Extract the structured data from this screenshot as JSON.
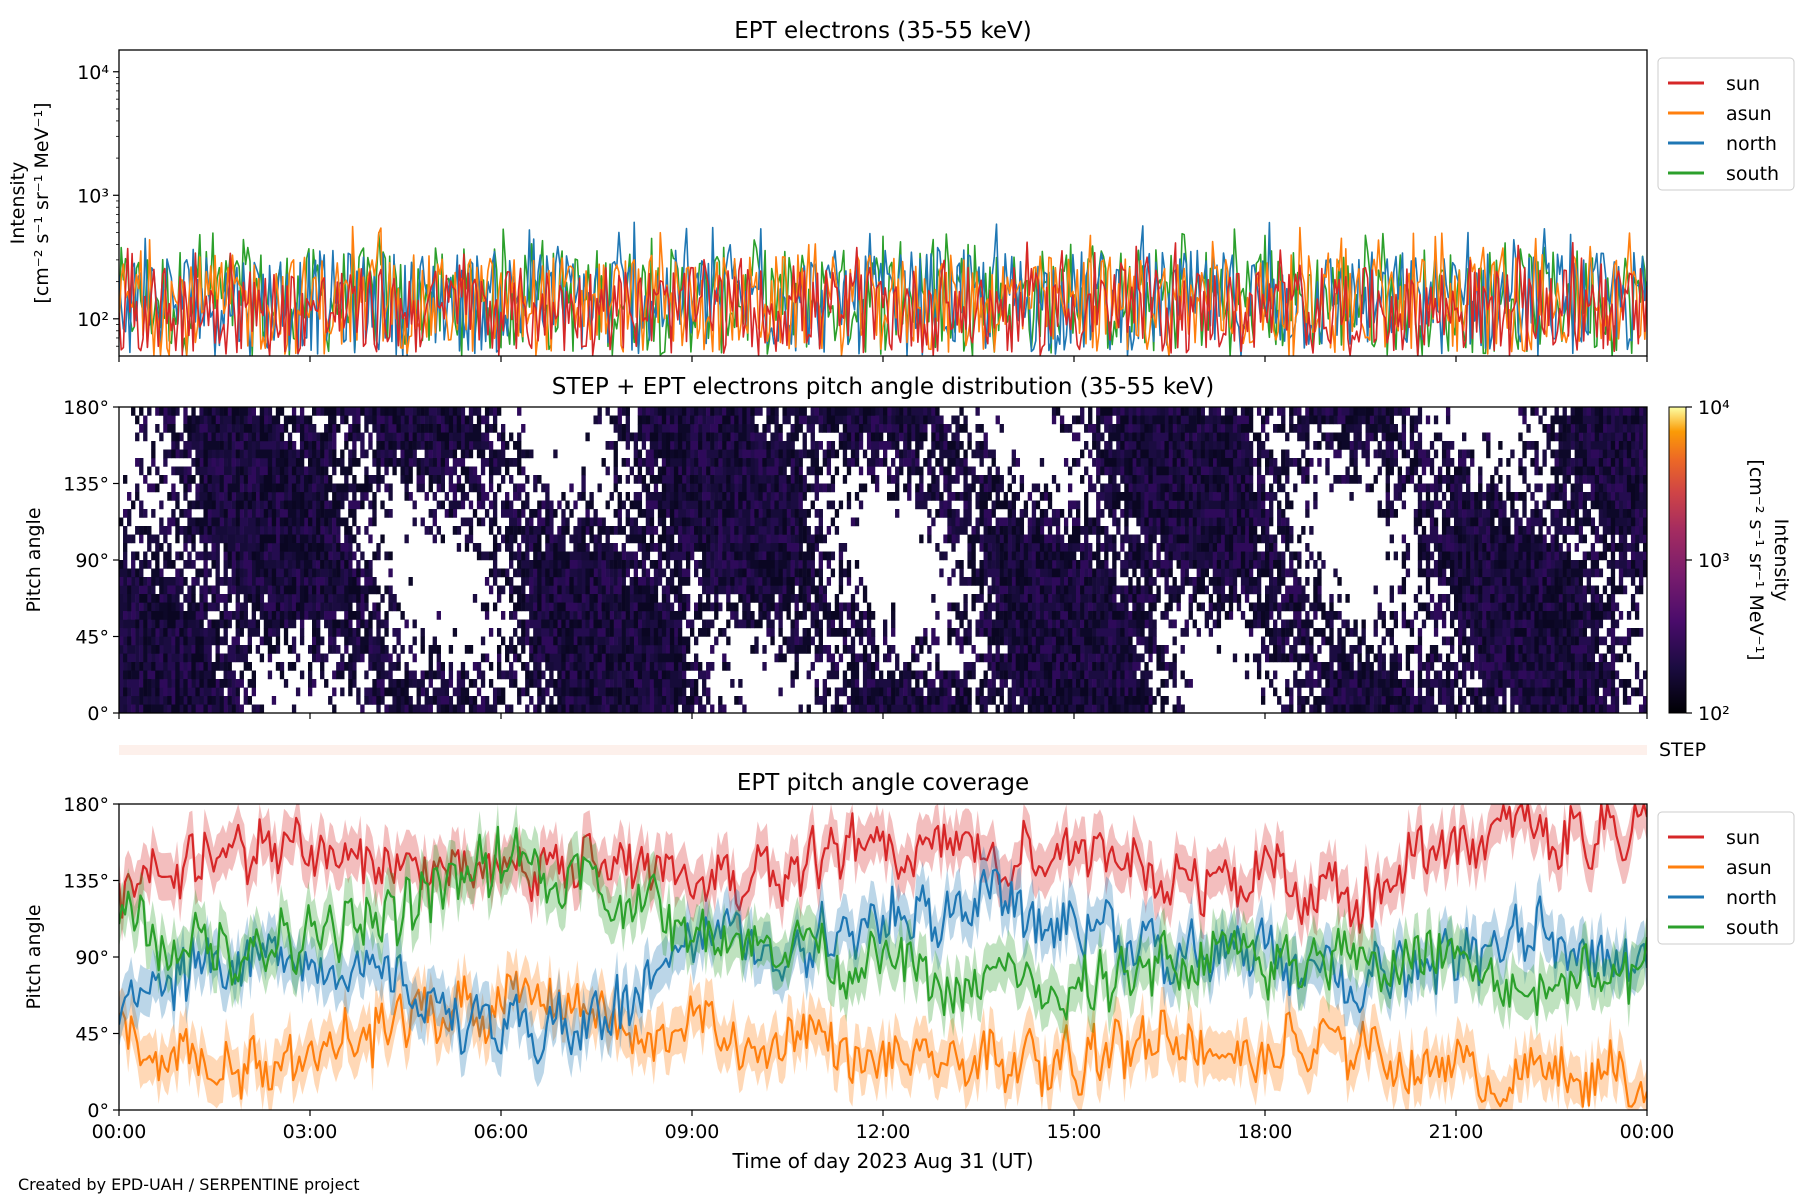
{
  "footer": "Created by EPD-UAH / SERPENTINE project",
  "xlabel": "Time of day 2023 Aug 31 (UT)",
  "x_tick_labels": [
    "00:00",
    "03:00",
    "06:00",
    "09:00",
    "12:00",
    "15:00",
    "18:00",
    "21:00",
    "00:00"
  ],
  "chart_data": [
    {
      "type": "line",
      "title": "EPT electrons (35-55 keV)",
      "ylabel_line1": "Intensity",
      "ylabel_line2": "[cm⁻² s⁻¹ sr⁻¹ MeV⁻¹]",
      "yscale": "log",
      "ylim": [
        50,
        15000
      ],
      "y_tick_labels": [
        "10²",
        "10³",
        "10⁴"
      ],
      "y_tick_values": [
        100,
        1000,
        10000
      ],
      "xlim_hours": [
        0,
        24
      ],
      "legend_position": "outside-right-top",
      "series": [
        {
          "name": "south",
          "color": "#2ca02c",
          "typical_range": [
            50,
            380
          ],
          "spike_max": 560
        },
        {
          "name": "north",
          "color": "#1f77b4",
          "typical_range": [
            50,
            360
          ],
          "spike_max": 640
        },
        {
          "name": "asun",
          "color": "#ff7f0e",
          "typical_range": [
            50,
            330
          ],
          "spike_max": 580
        },
        {
          "name": "sun",
          "color": "#d62728",
          "typical_range": [
            50,
            260
          ],
          "spike_max": 420
        }
      ],
      "legend_order": [
        "sun",
        "asun",
        "north",
        "south"
      ]
    },
    {
      "type": "heatmap",
      "title": "STEP + EPT electrons pitch angle distribution (35-55 keV)",
      "ylabel": "Pitch angle",
      "ylim": [
        0,
        180
      ],
      "y_tick_labels": [
        "0°",
        "45°",
        "90°",
        "135°",
        "180°"
      ],
      "colorbar": {
        "label_line1": "Intensity",
        "label_line2": "[cm⁻² s⁻¹ sr⁻¹ MeV⁻¹]",
        "scale": "log",
        "range": [
          100,
          10000
        ],
        "tick_labels": [
          "10²",
          "10³",
          "10⁴"
        ],
        "colormap": "inferno"
      }
    },
    {
      "type": "bar",
      "label": "STEP",
      "color": "#fdf0eb"
    },
    {
      "type": "line",
      "title": "EPT pitch angle coverage",
      "ylabel": "Pitch angle",
      "ylim": [
        0,
        180
      ],
      "y_tick_labels": [
        "0°",
        "45°",
        "90°",
        "135°",
        "180°"
      ],
      "legend_position": "outside-right-top",
      "series": [
        {
          "name": "sun",
          "color": "#d62728",
          "x_hours": [
            0,
            1.5,
            3,
            4.5,
            6,
            7.5,
            9,
            10.5,
            12,
            13.5,
            15,
            16.5,
            18,
            19.5,
            21,
            22.5,
            24
          ],
          "y_deg": [
            130,
            150,
            160,
            150,
            140,
            145,
            135,
            140,
            160,
            145,
            150,
            135,
            140,
            120,
            165,
            160,
            168
          ]
        },
        {
          "name": "asun",
          "color": "#ff7f0e",
          "x_hours": [
            0,
            1.5,
            3,
            4.5,
            6,
            7.5,
            9,
            10.5,
            12,
            13.5,
            15,
            16.5,
            18,
            19.5,
            21,
            22.5,
            24
          ],
          "y_deg": [
            40,
            20,
            30,
            55,
            60,
            50,
            45,
            40,
            35,
            25,
            30,
            45,
            35,
            40,
            25,
            20,
            20
          ]
        },
        {
          "name": "north",
          "color": "#1f77b4",
          "x_hours": [
            0,
            1.5,
            3,
            4.5,
            6,
            7.5,
            9,
            10.5,
            12,
            13.5,
            15,
            16.5,
            18,
            19.5,
            21,
            22.5,
            24
          ],
          "y_deg": [
            60,
            95,
            80,
            70,
            45,
            50,
            100,
            95,
            110,
            120,
            115,
            90,
            95,
            75,
            90,
            105,
            95
          ]
        },
        {
          "name": "south",
          "color": "#2ca02c",
          "x_hours": [
            0,
            1.5,
            3,
            4.5,
            6,
            7.5,
            9,
            10.5,
            12,
            13.5,
            15,
            16.5,
            18,
            19.5,
            21,
            22.5,
            24
          ],
          "y_deg": [
            110,
            90,
            100,
            120,
            150,
            130,
            110,
            100,
            80,
            75,
            70,
            90,
            85,
            95,
            80,
            75,
            85
          ]
        }
      ]
    }
  ]
}
